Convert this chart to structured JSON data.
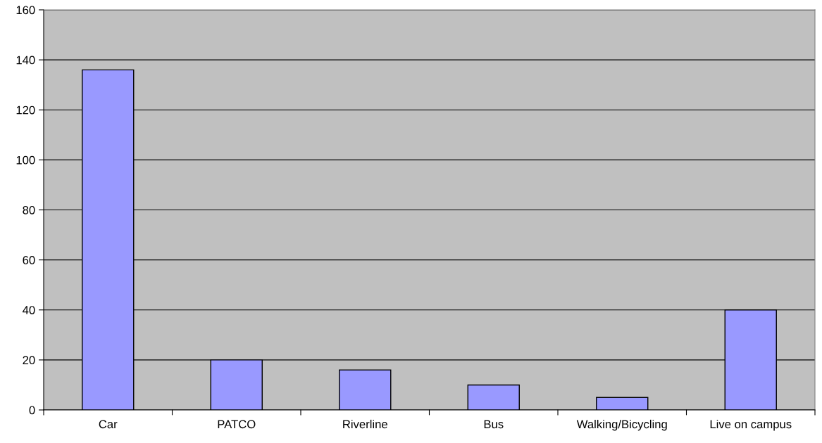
{
  "chart_data": {
    "type": "bar",
    "categories": [
      "Car",
      "PATCO",
      "Riverline",
      "Bus",
      "Walking/Bicycling",
      "Live on campus"
    ],
    "values": [
      136,
      20,
      16,
      10,
      5,
      40
    ],
    "color": "#9999ff",
    "ylim": [
      0,
      160
    ],
    "yticks": [
      0,
      20,
      40,
      60,
      80,
      100,
      120,
      140,
      160
    ],
    "grid": "y",
    "legend": false
  }
}
